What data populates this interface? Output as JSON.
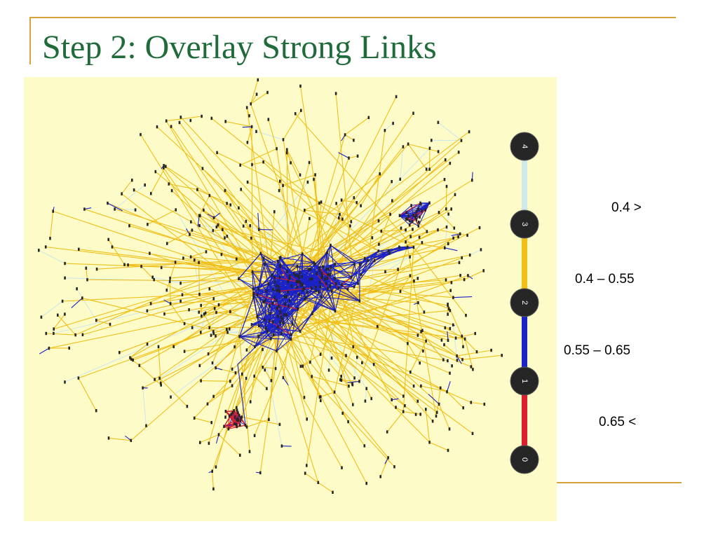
{
  "slide": {
    "title": "Step 2: Overlay Strong Links"
  },
  "colors": {
    "background": "#fdfcc9",
    "weak_link": "#cfe8ea",
    "medium_link": "#f0bf18",
    "strong_link": "#1a22c8",
    "strongest_link": "#dd1e30",
    "node": "#262626",
    "accent_rule": "#d4a33a",
    "title": "#1f6b3a"
  },
  "legend": {
    "nodes": [
      "4",
      "3",
      "2",
      "1",
      "0"
    ],
    "ranges": [
      {
        "label": "0.4 >",
        "color": "#cfe8ea"
      },
      {
        "label": "0.4 – 0.55",
        "color": "#f0bf18"
      },
      {
        "label": "0.55 – 0.65",
        "color": "#1a22c8"
      },
      {
        "label": "0.65 <",
        "color": "#dd1e30"
      }
    ]
  }
}
